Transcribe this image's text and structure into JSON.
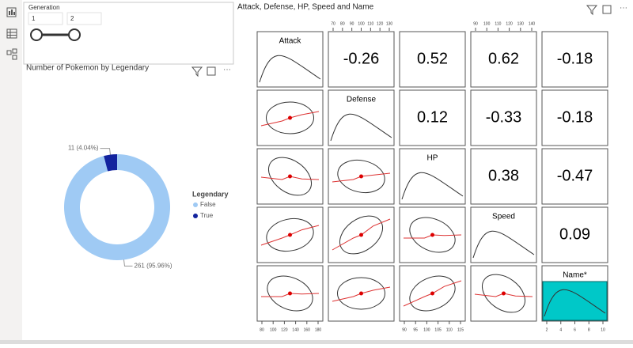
{
  "slicer": {
    "title": "Generation",
    "from": "1",
    "to": "2"
  },
  "chart_data": [
    {
      "type": "pie",
      "title": "Number of Pokemon by Legendary",
      "categories": [
        "False",
        "True"
      ],
      "values": [
        261,
        11
      ],
      "value_labels": [
        "261 (95.96%)",
        "11 (4.04%)"
      ],
      "colors": [
        "#9fcaf4",
        "#12239e"
      ],
      "legend_title": "Legendary",
      "hole": true
    },
    {
      "type": "scatter_matrix",
      "title": "Attack, Defense, HP, Speed and Name",
      "variables": [
        "Attack",
        "Defense",
        "HP",
        "Speed",
        "Name*"
      ],
      "correlations": [
        [
          null,
          -0.26,
          0.52,
          0.62,
          -0.18
        ],
        [
          null,
          null,
          0.12,
          -0.33,
          -0.18
        ],
        [
          null,
          null,
          null,
          0.38,
          -0.47
        ],
        [
          null,
          null,
          null,
          null,
          0.09
        ]
      ],
      "top_ticks": [
        null,
        [
          70,
          80,
          90,
          100,
          110,
          120,
          130
        ],
        null,
        [
          90,
          100,
          110,
          120,
          130,
          140
        ],
        null
      ],
      "bottom_ticks": [
        [
          80,
          100,
          120,
          140,
          160,
          180
        ],
        null,
        [
          90,
          95,
          100,
          105,
          110,
          115
        ],
        null,
        [
          2,
          4,
          6,
          8,
          10
        ]
      ]
    }
  ]
}
